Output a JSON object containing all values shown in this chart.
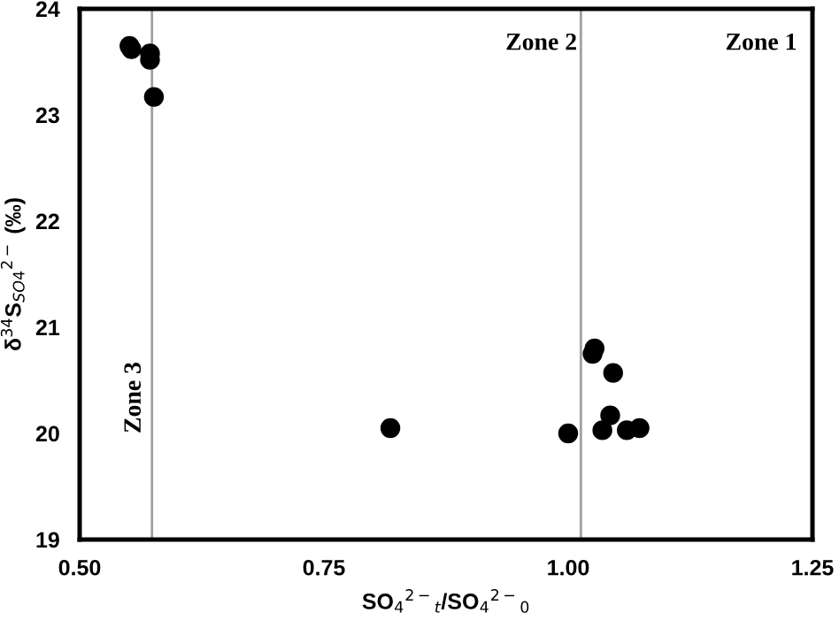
{
  "chart_data": {
    "type": "scatter",
    "xlabel": "SO$_{4}$$^{2−}$$_{t}$/SO$_{4}$$^{2−}$$_{0}$",
    "ylabel": "δ$^{34}$S$_{SO4}$$^{2−}$ (‰)",
    "x": [
      0.551,
      0.553,
      0.572,
      0.572,
      0.576,
      0.818,
      1.0,
      1.025,
      1.027,
      1.046,
      1.043,
      1.035,
      1.06,
      1.073
    ],
    "series": [
      {
        "color": "#000000",
        "values": [
          23.65,
          23.62,
          23.58,
          23.52,
          23.17,
          20.05,
          20.0,
          20.75,
          20.8,
          20.57,
          20.17,
          20.03,
          20.03,
          20.05
        ]
      }
    ],
    "xlim": [
      0.5,
      1.25
    ],
    "xticks": [
      {
        "value": 0.5,
        "label": "0.50"
      },
      {
        "value": 0.75,
        "label": "0.75"
      },
      {
        "value": 1.0,
        "label": "1.00"
      },
      {
        "value": 1.25,
        "label": "1.25"
      }
    ],
    "ylim": [
      19,
      24
    ],
    "yticks": [
      19,
      20,
      21,
      22,
      23,
      24
    ],
    "ref_lines": [
      {
        "axis": "x",
        "value": 0.574,
        "color": "#a0a0a0"
      },
      {
        "axis": "x",
        "value": 1.013,
        "color": "#a0a0a0"
      }
    ],
    "annotations": [
      "Zone 1",
      "Zone 2",
      "Zone 3"
    ],
    "marker": "circle",
    "grid": false,
    "legend": false
  }
}
